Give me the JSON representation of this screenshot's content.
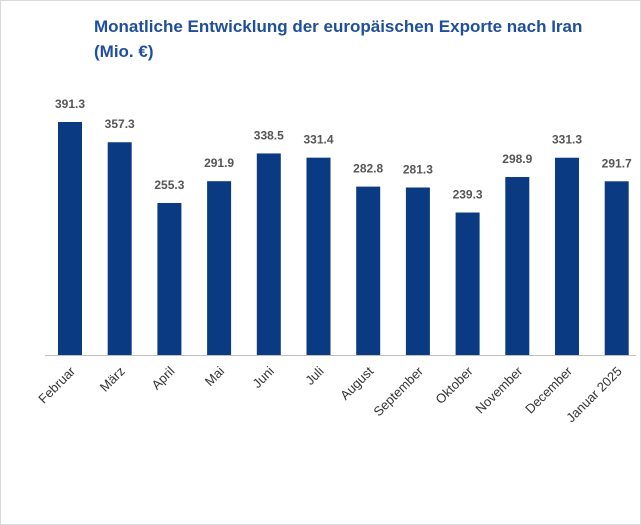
{
  "chart_data": {
    "type": "bar",
    "title": "Monatliche Entwicklung der europäischen Exporte nach Iran (Mio. €)",
    "categories": [
      "Februar",
      "März",
      "April",
      "Mai",
      "Juni",
      "Juli",
      "August",
      "September",
      "Oktober",
      "November",
      "December",
      "Januar 2025"
    ],
    "values": [
      391.3,
      357.3,
      255.3,
      291.9,
      338.5,
      331.4,
      282.8,
      281.3,
      239.3,
      298.9,
      331.3,
      291.7
    ],
    "color": "#0a3a82"
  }
}
